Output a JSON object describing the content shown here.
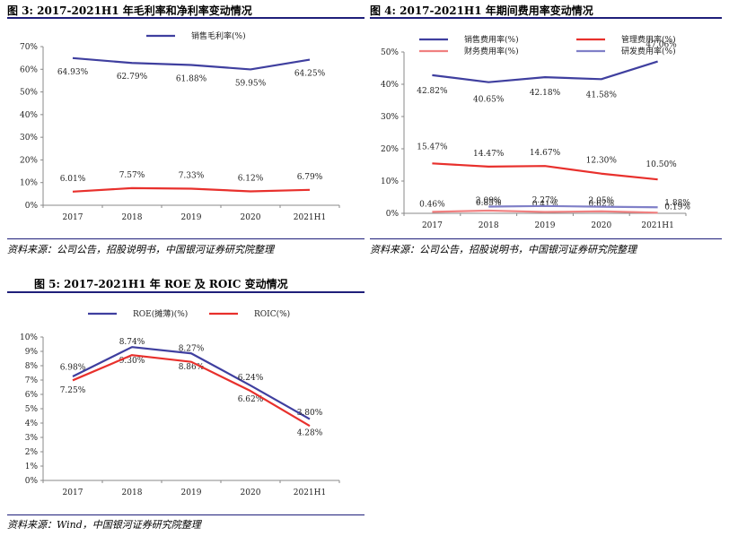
{
  "figures": [
    {
      "title": "图 3: 2017-2021H1 年毛利率和净利率变动情况",
      "source": "资料来源：公司公告，招股说明书，中国银河证券研究院整理"
    },
    {
      "title": "图 4: 2017-2021H1 年期间费用率变动情况",
      "source": "资料来源：公司公告，招股说明书，中国银河证券研究院整理"
    },
    {
      "title": "图 5: 2017-2021H1 年 ROE 及 ROIC 变动情况",
      "source": "资料来源：Wind，中国银河证券研究院整理"
    }
  ],
  "colors": {
    "navy": "#3f3f9f",
    "red": "#e8302c",
    "pink": "#f08080",
    "lavender": "#8080c8",
    "rule": "#1f1f7a"
  },
  "chart_data": [
    {
      "type": "line",
      "categories": [
        "2017",
        "2018",
        "2019",
        "2020",
        "2021H1"
      ],
      "series": [
        {
          "name": "销售毛利率(%)",
          "values": [
            64.93,
            62.79,
            61.88,
            59.95,
            64.25
          ],
          "labels": [
            "64.93%",
            "62.79%",
            "61.88%",
            "59.95%",
            "64.25%"
          ],
          "color": "#3f3f9f"
        },
        {
          "name": "",
          "values": [
            6.01,
            7.57,
            7.33,
            6.12,
            6.79
          ],
          "labels": [
            "6.01%",
            "7.57%",
            "7.33%",
            "6.12%",
            "6.79%"
          ],
          "color": "#e8302c"
        }
      ],
      "yticks": [
        "0%",
        "10%",
        "20%",
        "30%",
        "40%",
        "50%",
        "60%",
        "70%"
      ],
      "ylim": [
        0,
        70
      ],
      "legend": "top-center"
    },
    {
      "type": "line",
      "categories": [
        "2017",
        "2018",
        "2019",
        "2020",
        "2021H1"
      ],
      "series": [
        {
          "name": "销售费用率(%)",
          "values": [
            42.82,
            40.65,
            42.18,
            41.58,
            47.06
          ],
          "labels": [
            "42.82%",
            "40.65%",
            "42.18%",
            "41.58%",
            "47.06%"
          ],
          "color": "#3f3f9f"
        },
        {
          "name": "管理费用率(%)",
          "values": [
            15.47,
            14.47,
            14.67,
            12.3,
            10.5
          ],
          "labels": [
            "15.47%",
            "14.47%",
            "14.67%",
            "12.30%",
            "10.50%"
          ],
          "color": "#e8302c"
        },
        {
          "name": "财务费用率(%)",
          "values": [
            0.46,
            0.85,
            0.41,
            0.62,
            0.19
          ],
          "labels": [
            "0.46%",
            "0.85%",
            "0.41%",
            "0.62%",
            "0.19%"
          ],
          "color": "#f08080"
        },
        {
          "name": "研发费用率(%)",
          "values": [
            null,
            2.09,
            2.27,
            2.05,
            1.88
          ],
          "labels": [
            "",
            "2.09%",
            "2.27%",
            "2.05%",
            "1.88%"
          ],
          "color": "#8080c8"
        }
      ],
      "yticks": [
        "0%",
        "10%",
        "20%",
        "30%",
        "40%",
        "50%"
      ],
      "ylim": [
        0,
        50
      ],
      "legend": "top"
    },
    {
      "type": "line",
      "categories": [
        "2017",
        "2018",
        "2019",
        "2020",
        "2021H1"
      ],
      "series": [
        {
          "name": "ROE(摊薄)(%)",
          "values": [
            7.25,
            9.3,
            8.86,
            6.62,
            4.28
          ],
          "labels": [
            "7.25%",
            "9.30%",
            "8.86%",
            "6.62%",
            "4.28%"
          ],
          "color": "#3f3f9f"
        },
        {
          "name": "ROIC(%)",
          "values": [
            6.98,
            8.74,
            8.27,
            6.24,
            3.8
          ],
          "labels": [
            "6.98%",
            "8.74%",
            "8.27%",
            "6.24%",
            "3.80%"
          ],
          "color": "#e8302c"
        }
      ],
      "yticks": [
        "0%",
        "1%",
        "2%",
        "3%",
        "4%",
        "5%",
        "6%",
        "7%",
        "8%",
        "9%",
        "10%"
      ],
      "ylim": [
        0,
        10
      ],
      "legend": "top"
    }
  ]
}
